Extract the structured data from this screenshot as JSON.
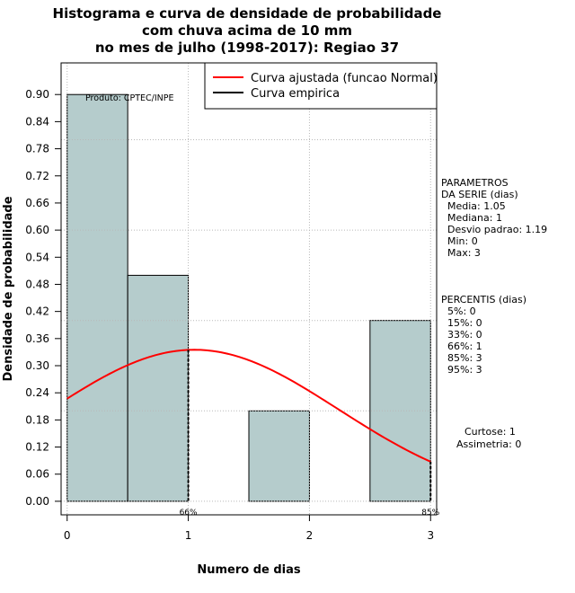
{
  "chart_data": {
    "type": "bar",
    "title_lines": [
      "Histograma e curva de densidade de probabilidade",
      "com chuva acima de 10 mm",
      "no mes de julho (1998-2017): Regiao 37"
    ],
    "xlabel": "Numero de dias",
    "ylabel": "Densidade de probabilidade",
    "xlim": [
      -0.05,
      3.05
    ],
    "ylim": [
      -0.03,
      0.97
    ],
    "x_ticks": [
      "0",
      "1",
      "2",
      "3"
    ],
    "y_ticks": [
      "0.00",
      "0.06",
      "0.12",
      "0.18",
      "0.24",
      "0.30",
      "0.36",
      "0.42",
      "0.48",
      "0.54",
      "0.60",
      "0.66",
      "0.72",
      "0.78",
      "0.84",
      "0.90"
    ],
    "bins": [
      {
        "x0": 0.0,
        "x1": 0.5,
        "density": 0.9
      },
      {
        "x0": 0.5,
        "x1": 1.0,
        "density": 0.5
      },
      {
        "x0": 1.0,
        "x1": 1.5,
        "density": 0.0
      },
      {
        "x0": 1.5,
        "x1": 2.0,
        "density": 0.2
      },
      {
        "x0": 2.0,
        "x1": 2.5,
        "density": 0.0
      },
      {
        "x0": 2.5,
        "x1": 3.0,
        "density": 0.4
      }
    ],
    "normal_curve": {
      "name": "Curva ajustada (funcao Normal)",
      "mean": 1.05,
      "sd": 1.19,
      "color": "#ff0000"
    },
    "empirical_curve": {
      "name": "Curva empirica",
      "color": "#000000"
    },
    "grid": true,
    "legend_position": "top-right",
    "percentile_markers": [
      {
        "x": 1,
        "label": "66%"
      },
      {
        "x": 3,
        "label": "85%"
      }
    ],
    "watermark": "Produto: CPTEC/INPE",
    "bar_color": "#b5cccc"
  },
  "stats": {
    "params_header": "PARAMETROS\nDA SERIE (dias)",
    "params_body": "  Media: 1.05\n  Mediana: 1\n  Desvio padrao: 1.19\n  Min: 0\n  Max: 3",
    "percentis_header": "PERCENTIS (dias)",
    "percentis_body": "  5%: 0\n  15%: 0\n  33%: 0\n  66%: 1\n  85%: 3\n  95%: 3",
    "curtose": "Curtose: 1",
    "assimetria": "Assimetria: 0"
  }
}
